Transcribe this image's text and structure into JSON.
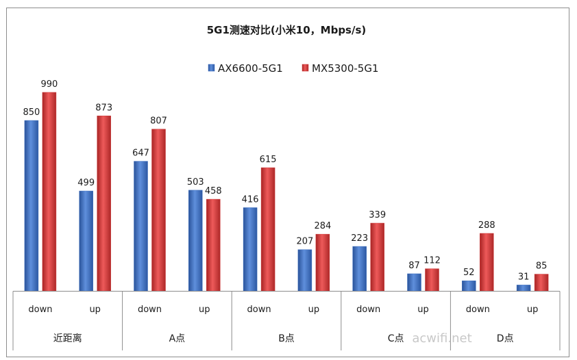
{
  "chart_data": {
    "type": "bar",
    "title": "5G1测速对比(小米10，Mbps/s)",
    "legend_position": "top",
    "grid": false,
    "ylim": [
      0,
      1000
    ],
    "groups": [
      "近距离",
      "A点",
      "B点",
      "C点",
      "D点"
    ],
    "categories": [
      "down",
      "up",
      "down",
      "up",
      "down",
      "up",
      "down",
      "up",
      "down",
      "up"
    ],
    "series": [
      {
        "name": "AX6600-5G1",
        "color": "#3d6fc0",
        "values": [
          850,
          499,
          647,
          503,
          416,
          207,
          223,
          87,
          52,
          31
        ]
      },
      {
        "name": "MX5300-5G1",
        "color": "#cf3a3a",
        "values": [
          990,
          873,
          807,
          458,
          615,
          284,
          339,
          112,
          288,
          85
        ]
      }
    ]
  },
  "watermark": "acwifi.net"
}
